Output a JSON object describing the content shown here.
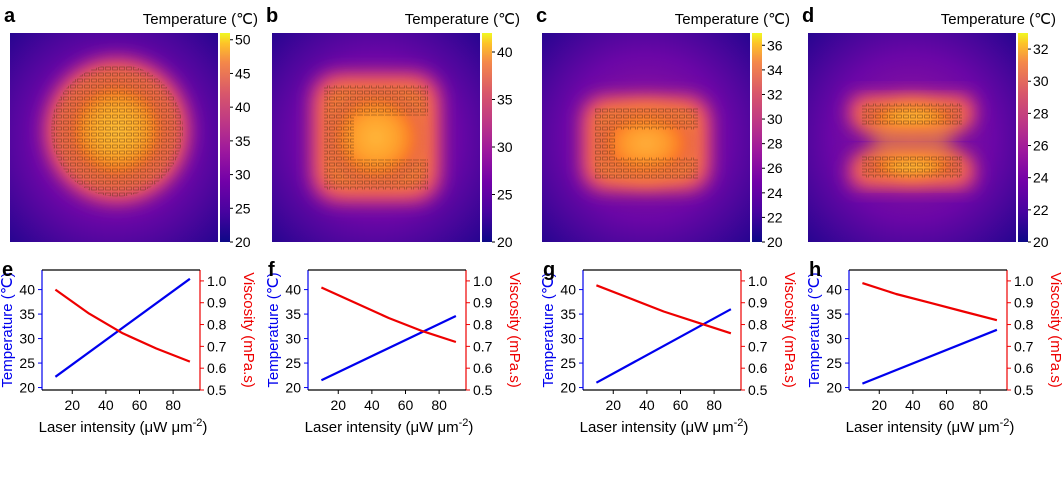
{
  "colorbar_label": "Temperature (℃)",
  "panel_letters": [
    "a",
    "b",
    "c",
    "d",
    "e",
    "f",
    "g",
    "h"
  ],
  "chart_data": [
    {
      "panel": "a",
      "type": "heatmap",
      "colorbar": {
        "label": "Temperature (℃)",
        "ticks": [
          20,
          25,
          30,
          35,
          40,
          45,
          50
        ],
        "range": [
          20,
          51
        ]
      },
      "pattern": "O"
    },
    {
      "panel": "b",
      "type": "heatmap",
      "colorbar": {
        "label": "Temperature (℃)",
        "ticks": [
          20,
          25,
          30,
          35,
          40
        ],
        "range": [
          20,
          42
        ]
      },
      "pattern": "C"
    },
    {
      "panel": "c",
      "type": "heatmap",
      "colorbar": {
        "label": "Temperature (℃)",
        "ticks": [
          20,
          22,
          24,
          26,
          28,
          30,
          32,
          34,
          36
        ],
        "range": [
          20,
          37
        ]
      },
      "pattern": "I"
    },
    {
      "panel": "d",
      "type": "heatmap",
      "colorbar": {
        "label": "Temperature (℃)",
        "ticks": [
          20,
          22,
          24,
          26,
          28,
          30,
          32
        ],
        "range": [
          20,
          33
        ]
      },
      "pattern": "="
    },
    {
      "panel": "e",
      "type": "line",
      "xlabel": "Laser intensity (μW μm⁻²)",
      "ylabel_left": "Temperature (℃)",
      "ylabel_right": "Viscosity (mPa.s)",
      "x_ticks": [
        20,
        40,
        60,
        80
      ],
      "xlim": [
        2,
        96
      ],
      "ylim_left": [
        19.5,
        44
      ],
      "yticks_left": [
        20,
        25,
        30,
        35,
        40
      ],
      "ylim_right": [
        0.5,
        1.05
      ],
      "yticks_right": [
        0.5,
        0.6,
        0.7,
        0.8,
        0.9,
        1.0
      ],
      "series": [
        {
          "axis": "left",
          "color": "#0000ee",
          "x": [
            10,
            90
          ],
          "y": [
            22.2,
            42.2
          ]
        },
        {
          "axis": "right",
          "color": "#ee0000",
          "x": [
            10,
            30,
            50,
            70,
            90
          ],
          "y": [
            0.96,
            0.85,
            0.76,
            0.69,
            0.63
          ]
        }
      ]
    },
    {
      "panel": "f",
      "type": "line",
      "xlabel": "Laser intensity (μW μm⁻²)",
      "ylabel_left": "Temperature (℃)",
      "ylabel_right": "Viscosity (mPa.s)",
      "x_ticks": [
        20,
        40,
        60,
        80
      ],
      "xlim": [
        2,
        96
      ],
      "ylim_left": [
        19.5,
        44
      ],
      "yticks_left": [
        20,
        25,
        30,
        35,
        40
      ],
      "ylim_right": [
        0.5,
        1.05
      ],
      "yticks_right": [
        0.5,
        0.6,
        0.7,
        0.8,
        0.9,
        1.0
      ],
      "series": [
        {
          "axis": "left",
          "color": "#0000ee",
          "x": [
            10,
            90
          ],
          "y": [
            21.5,
            34.6
          ]
        },
        {
          "axis": "right",
          "color": "#ee0000",
          "x": [
            10,
            30,
            50,
            70,
            90
          ],
          "y": [
            0.97,
            0.9,
            0.83,
            0.77,
            0.72
          ]
        }
      ]
    },
    {
      "panel": "g",
      "type": "line",
      "xlabel": "Laser intensity (μW μm⁻²)",
      "ylabel_left": "Temperature (℃)",
      "ylabel_right": "Viscosity (mPa.s)",
      "x_ticks": [
        20,
        40,
        60,
        80
      ],
      "xlim": [
        2,
        96
      ],
      "ylim_left": [
        19.5,
        44
      ],
      "yticks_left": [
        20,
        25,
        30,
        35,
        40
      ],
      "ylim_right": [
        0.5,
        1.05
      ],
      "yticks_right": [
        0.5,
        0.6,
        0.7,
        0.8,
        0.9,
        1.0
      ],
      "series": [
        {
          "axis": "left",
          "color": "#0000ee",
          "x": [
            10,
            90
          ],
          "y": [
            21.0,
            36.0
          ]
        },
        {
          "axis": "right",
          "color": "#ee0000",
          "x": [
            10,
            30,
            50,
            70,
            90
          ],
          "y": [
            0.98,
            0.92,
            0.86,
            0.81,
            0.76
          ]
        }
      ]
    },
    {
      "panel": "h",
      "type": "line",
      "xlabel": "Laser intensity (μW μm⁻²)",
      "ylabel_left": "Temperature (℃)",
      "ylabel_right": "Viscosity (mPa.s)",
      "x_ticks": [
        20,
        40,
        60,
        80
      ],
      "xlim": [
        2,
        96
      ],
      "ylim_left": [
        19.5,
        44
      ],
      "yticks_left": [
        20,
        25,
        30,
        35,
        40
      ],
      "ylim_right": [
        0.5,
        1.05
      ],
      "yticks_right": [
        0.5,
        0.6,
        0.7,
        0.8,
        0.9,
        1.0
      ],
      "series": [
        {
          "axis": "left",
          "color": "#0000ee",
          "x": [
            10,
            90
          ],
          "y": [
            20.8,
            31.8
          ]
        },
        {
          "axis": "right",
          "color": "#ee0000",
          "x": [
            10,
            30,
            50,
            70,
            90
          ],
          "y": [
            0.99,
            0.94,
            0.9,
            0.86,
            0.82
          ]
        }
      ]
    }
  ]
}
